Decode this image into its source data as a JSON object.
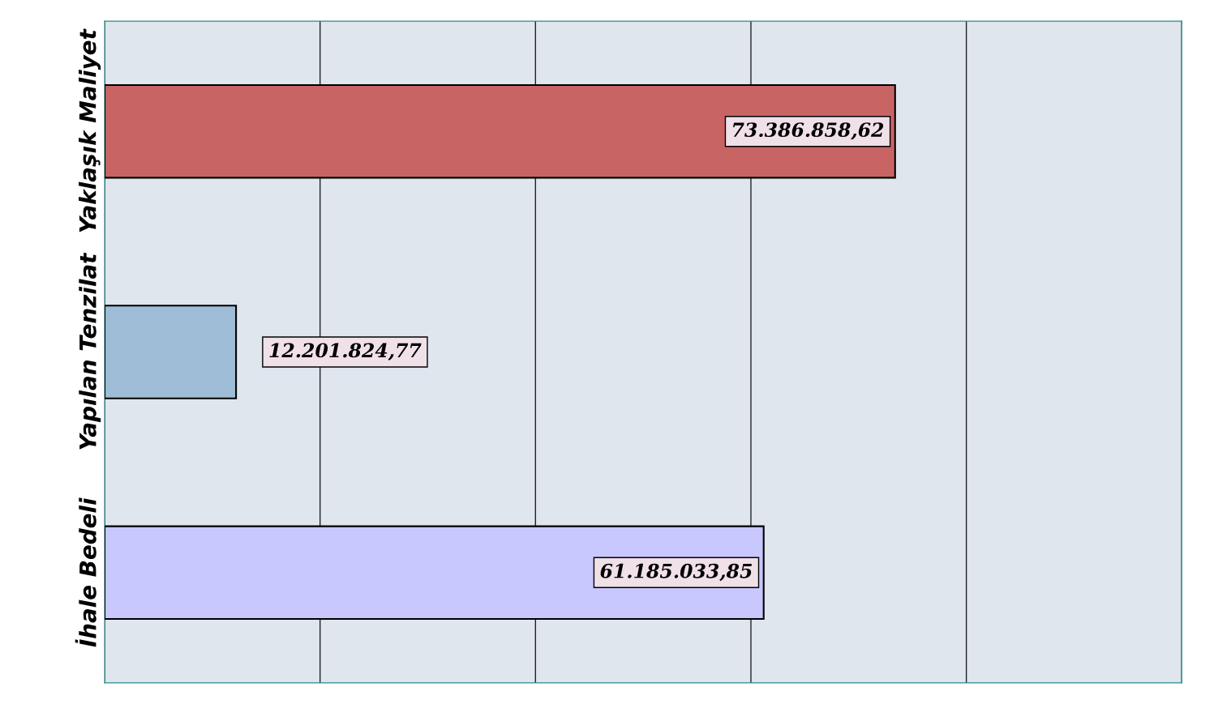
{
  "chart_data": {
    "type": "bar",
    "orientation": "horizontal",
    "categories": [
      "Yaklaşık Maliyet",
      "Yapılan Tenzilat",
      "İhale Bedeli"
    ],
    "values": [
      73386858.62,
      12201824.77,
      61185033.85
    ],
    "colors": [
      "#c86464",
      "#9fbdd6",
      "#c8c8ff"
    ],
    "value_labels": [
      "73.386.858,62",
      "12.201.824,77",
      "61.185.033,85"
    ],
    "xlim": [
      0,
      100000000
    ],
    "xticks": [
      {
        "value": 0,
        "label": null
      },
      {
        "value": 20000000,
        "label": null
      },
      {
        "value": 40000000,
        "label": null
      },
      {
        "value": 60000000,
        "label": null
      },
      {
        "value": 80000000,
        "label": null
      },
      {
        "value": 100000000,
        "label": null
      }
    ],
    "grid": "x",
    "tick_labels": "y"
  }
}
